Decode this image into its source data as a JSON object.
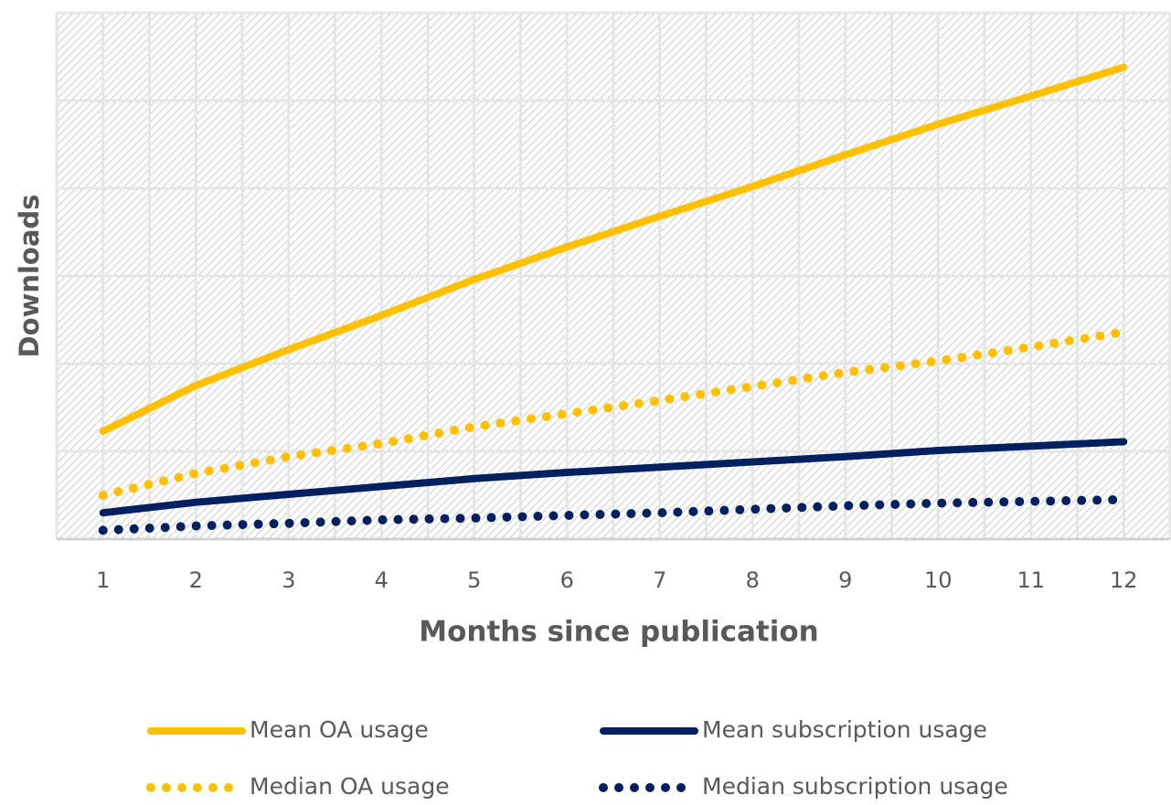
{
  "chart_data": {
    "type": "line",
    "x_label": "Months since publication",
    "y_label": "Downloads",
    "categories": [
      "1",
      "2",
      "3",
      "4",
      "5",
      "6",
      "7",
      "8",
      "9",
      "10",
      "11",
      "12"
    ],
    "series": [
      {
        "name": "Mean OA usage",
        "color": "#ffc000",
        "style": "solid",
        "values": [
          1.23,
          1.75,
          2.16,
          2.55,
          2.96,
          3.33,
          3.68,
          4.02,
          4.38,
          4.73,
          5.05,
          5.38
        ]
      },
      {
        "name": "Mean subscription usage",
        "color": "#002060",
        "style": "solid",
        "values": [
          0.3,
          0.42,
          0.51,
          0.6,
          0.69,
          0.76,
          0.82,
          0.88,
          0.94,
          1.01,
          1.06,
          1.11
        ]
      },
      {
        "name": "Median OA usage",
        "color": "#ffc000",
        "style": "dotted",
        "values": [
          0.5,
          0.75,
          0.94,
          1.09,
          1.28,
          1.43,
          1.58,
          1.74,
          1.9,
          2.03,
          2.19,
          2.36
        ]
      },
      {
        "name": "Median subscription usage",
        "color": "#002060",
        "style": "dotted",
        "values": [
          0.1,
          0.15,
          0.18,
          0.22,
          0.24,
          0.27,
          0.3,
          0.34,
          0.38,
          0.41,
          0.43,
          0.45
        ]
      }
    ],
    "ylim": [
      0,
      6
    ],
    "yticks": [
      0,
      1,
      2,
      3,
      4,
      5,
      6
    ],
    "grid": true
  }
}
